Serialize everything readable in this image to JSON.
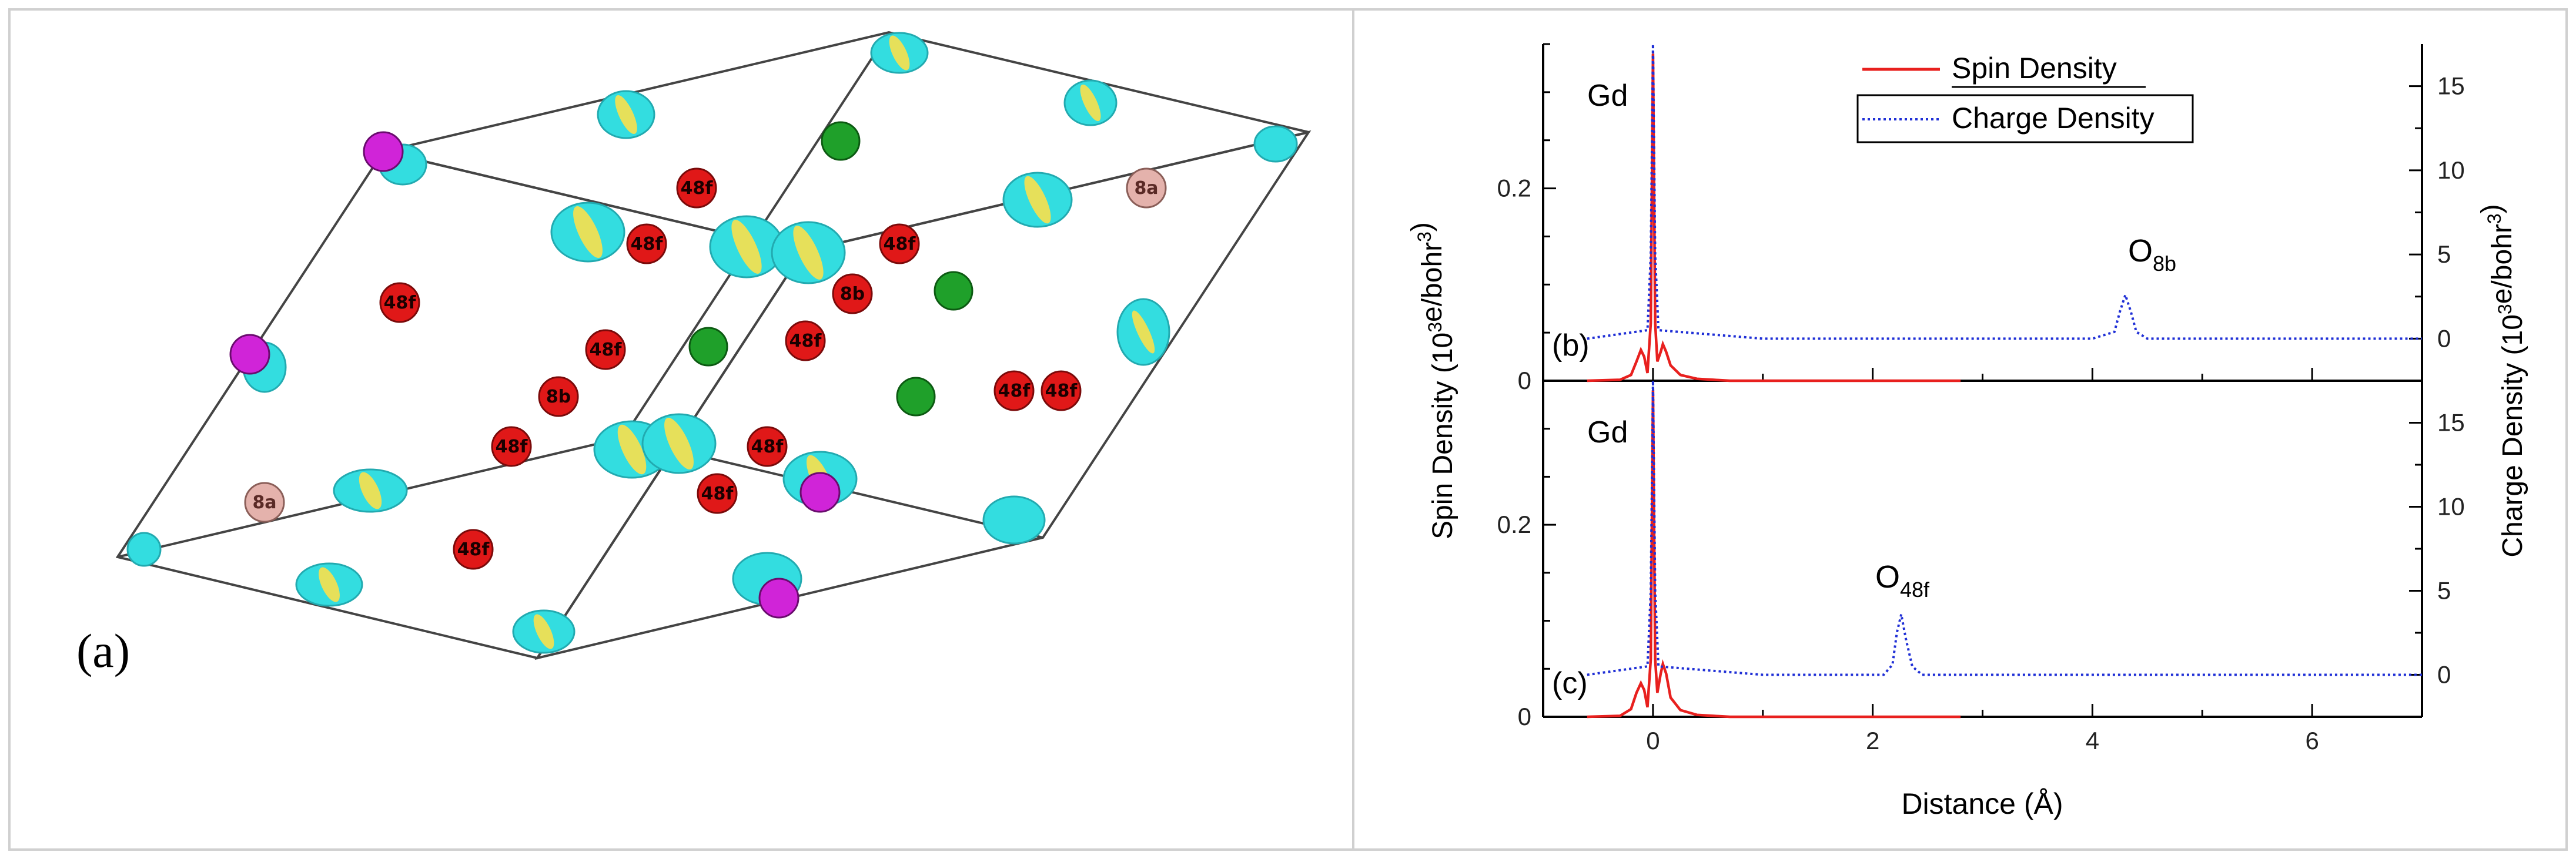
{
  "panel_a": {
    "label": "(a)",
    "atom_labels": [
      "48f",
      "48f",
      "48f",
      "48f",
      "48f",
      "48f",
      "48f",
      "48f",
      "48f",
      "48f",
      "48f",
      "48f",
      "8b",
      "8b",
      "8a",
      "8a"
    ]
  },
  "chart_data": [
    {
      "type": "line",
      "panel": "(b)",
      "atom_label": "Gd",
      "peak_label": {
        "base": "O",
        "sub": "8b"
      },
      "xlabel": "Distance (Å)",
      "ylabel": "Spin Density (10³e/bohr³)",
      "y2label": "Charge Density (10³e/bohr³)",
      "xlim": [
        -1,
        7
      ],
      "ylim": [
        0,
        0.35
      ],
      "y2lim": [
        -2.5,
        17.5
      ],
      "xticks": [
        0,
        2,
        4,
        6
      ],
      "yticks": [
        0,
        0.2
      ],
      "y2ticks": [
        0,
        5,
        10,
        15
      ],
      "series": [
        {
          "name": "Spin Density",
          "axis": "left",
          "color": "#e8201e",
          "style": "solid",
          "x": [
            -0.6,
            -0.3,
            -0.2,
            -0.15,
            -0.11,
            -0.08,
            -0.05,
            -0.02,
            -0.01,
            0.0,
            0.01,
            0.02,
            0.04,
            0.07,
            0.09,
            0.12,
            0.16,
            0.25,
            0.4,
            0.55,
            0.7,
            1.0,
            2.0,
            2.8
          ],
          "y": [
            0,
            0.001,
            0.006,
            0.02,
            0.032,
            0.025,
            0.008,
            0.06,
            0.2,
            0.34,
            0.2,
            0.06,
            0.02,
            0.03,
            0.038,
            0.03,
            0.016,
            0.006,
            0.002,
            0.001,
            0.0,
            0,
            0,
            0
          ]
        },
        {
          "name": "Charge Density",
          "axis": "right",
          "color": "#1f2fd6",
          "style": "dotted",
          "x": [
            -0.6,
            -0.05,
            -0.02,
            0.0,
            0.02,
            0.05,
            1.0,
            4.0,
            4.2,
            4.25,
            4.3,
            4.35,
            4.4,
            4.5,
            5.0,
            7.0
          ],
          "y": [
            0,
            0.5,
            5,
            17.5,
            5,
            0.5,
            0,
            0,
            0.4,
            1.6,
            2.6,
            1.6,
            0.4,
            0,
            0,
            0
          ]
        }
      ]
    },
    {
      "type": "line",
      "panel": "(c)",
      "atom_label": "Gd",
      "peak_label": {
        "base": "O",
        "sub": "48f"
      },
      "xlabel": "Distance (Å)",
      "ylabel": "Spin Density (10³e/bohr³)",
      "y2label": "Charge Density (10³e/bohr³)",
      "xlim": [
        -1,
        7
      ],
      "ylim": [
        0,
        0.35
      ],
      "y2lim": [
        -2.5,
        17.5
      ],
      "xticks": [
        0,
        2,
        4,
        6
      ],
      "yticks": [
        0,
        0.2
      ],
      "y2ticks": [
        0,
        5,
        10,
        15
      ],
      "series": [
        {
          "name": "Spin Density",
          "axis": "left",
          "color": "#e8201e",
          "style": "solid",
          "x": [
            -0.6,
            -0.3,
            -0.2,
            -0.15,
            -0.11,
            -0.08,
            -0.05,
            -0.02,
            -0.01,
            0.0,
            0.01,
            0.02,
            0.04,
            0.07,
            0.09,
            0.12,
            0.16,
            0.25,
            0.4,
            0.55,
            0.7,
            1.0,
            2.0,
            2.8
          ],
          "y": [
            0,
            0.001,
            0.008,
            0.025,
            0.035,
            0.028,
            0.01,
            0.06,
            0.2,
            0.34,
            0.2,
            0.06,
            0.025,
            0.045,
            0.055,
            0.045,
            0.02,
            0.007,
            0.002,
            0.001,
            0.0,
            0,
            0,
            0
          ]
        },
        {
          "name": "Charge Density",
          "axis": "right",
          "color": "#1f2fd6",
          "style": "dotted",
          "x": [
            -0.6,
            -0.05,
            -0.02,
            0.0,
            0.02,
            0.05,
            1.0,
            2.1,
            2.18,
            2.22,
            2.26,
            2.3,
            2.36,
            2.45,
            3.0,
            7.0
          ],
          "y": [
            0,
            0.5,
            5,
            17.5,
            5,
            0.5,
            0,
            0,
            0.6,
            2.5,
            3.6,
            2.2,
            0.5,
            0,
            0,
            0
          ]
        }
      ]
    }
  ],
  "legend": {
    "spin": "Spin Density",
    "charge": "Charge Density"
  }
}
